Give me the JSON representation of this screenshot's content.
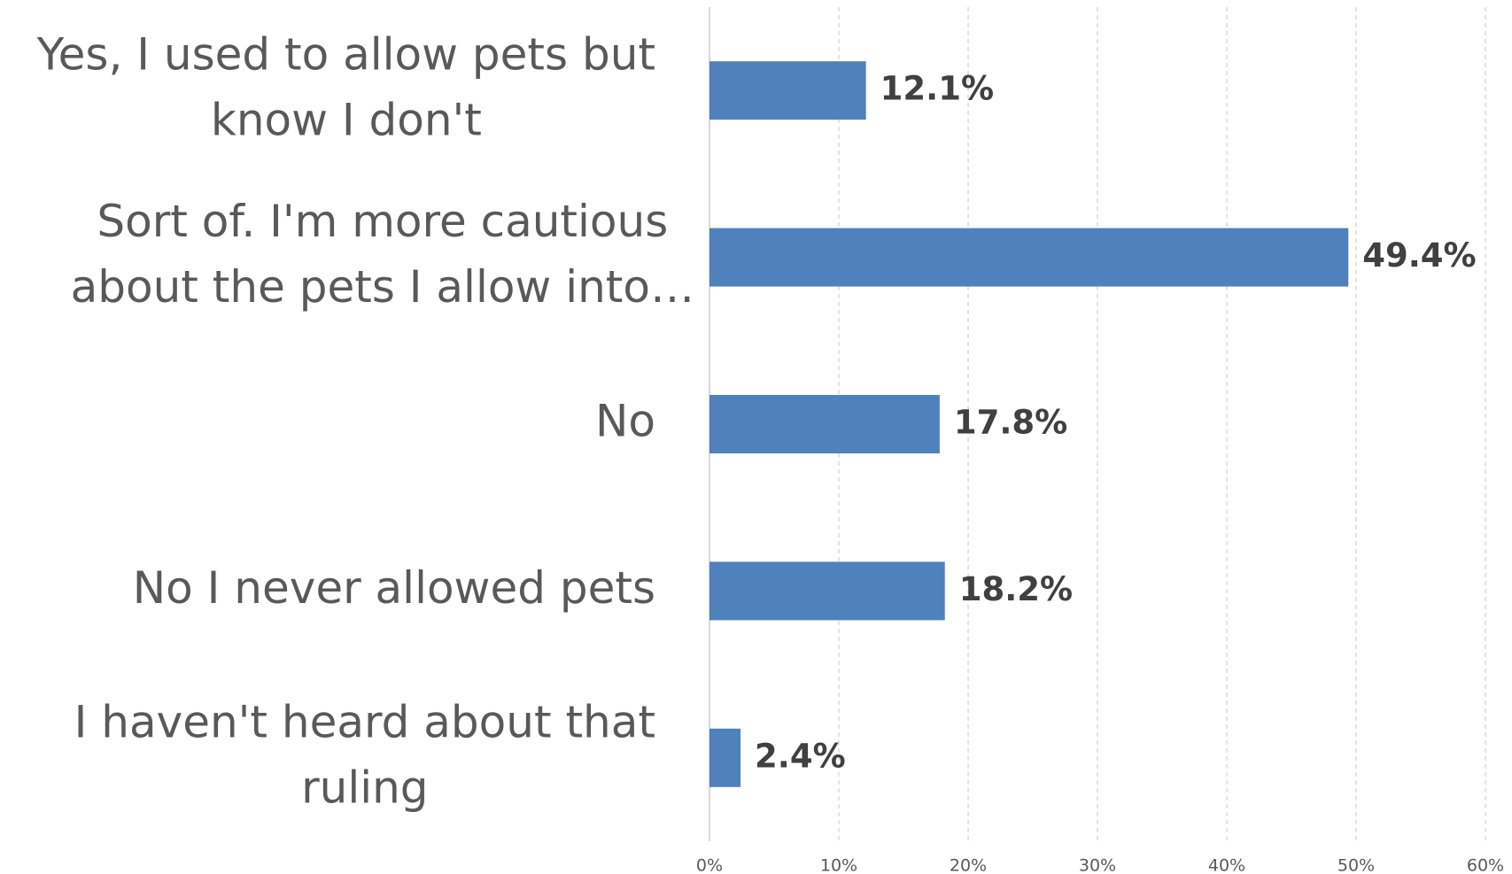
{
  "chart_data": {
    "type": "barh",
    "categories": [
      [
        "Yes, I used to allow pets but",
        "know I don't"
      ],
      [
        "Sort of. I'm more cautious",
        "about the pets I allow into…"
      ],
      [
        "No"
      ],
      [
        "No I never allowed pets"
      ],
      [
        "I haven't heard about that",
        "ruling"
      ]
    ],
    "values": [
      12.1,
      49.4,
      17.8,
      18.2,
      2.4
    ],
    "value_labels": [
      "12.1%",
      "49.4%",
      "17.8%",
      "18.2%",
      "2.4%"
    ],
    "color": "#4f81bd",
    "xlim": [
      0,
      60
    ],
    "xticks": [
      {
        "value": 0,
        "label": "0%"
      },
      {
        "value": 10,
        "label": "10%"
      },
      {
        "value": 20,
        "label": "20%"
      },
      {
        "value": 30,
        "label": "30%"
      },
      {
        "value": 40,
        "label": "40%"
      },
      {
        "value": 50,
        "label": "50%"
      },
      {
        "value": 60,
        "label": "60%"
      }
    ],
    "grid": true
  }
}
